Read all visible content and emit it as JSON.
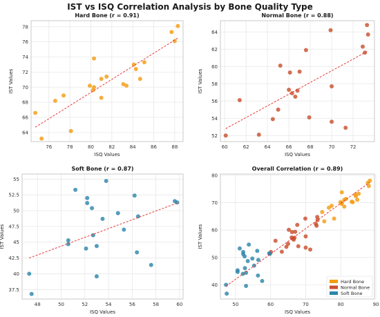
{
  "figure": {
    "title": "IST vs ISQ Correlation Analysis by Bone Quality Type"
  },
  "colors": {
    "hard": "#f39c12",
    "normal": "#c9502e",
    "soft": "#2e86ab",
    "fit": "#e53935",
    "grid": "#e8e8e8",
    "frame": "#bdbdbd"
  },
  "chart_data": [
    {
      "type": "scatter",
      "title": "Hard Bone (r = 0.91)",
      "xlabel": "ISQ Values",
      "ylabel": "IST Values",
      "xlim": [
        74.3,
        88.8
      ],
      "ylim": [
        62.8,
        78.8
      ],
      "xticks": [
        76,
        78,
        80,
        82,
        84,
        86,
        88
      ],
      "yticks": [
        64,
        66,
        68,
        70,
        72,
        74,
        76,
        78
      ],
      "series": [
        {
          "color_key": "hard",
          "points": [
            [
              74.7,
              66.6
            ],
            [
              75.3,
              63.2
            ],
            [
              76.6,
              68.2
            ],
            [
              77.4,
              68.9
            ],
            [
              78.1,
              64.2
            ],
            [
              79.9,
              70.2
            ],
            [
              80.2,
              69.6
            ],
            [
              80.3,
              70.0
            ],
            [
              80.3,
              73.8
            ],
            [
              81.0,
              68.6
            ],
            [
              81.0,
              71.1
            ],
            [
              81.5,
              71.4
            ],
            [
              83.1,
              70.4
            ],
            [
              83.4,
              70.2
            ],
            [
              84.1,
              73.0
            ],
            [
              84.3,
              72.4
            ],
            [
              84.7,
              71.1
            ],
            [
              85.1,
              73.3
            ],
            [
              87.7,
              77.3
            ],
            [
              88.0,
              76.1
            ],
            [
              88.3,
              78.1
            ]
          ]
        }
      ],
      "fit": [
        [
          74.7,
          64.7
        ],
        [
          88.3,
          76.5
        ]
      ]
    },
    {
      "type": "scatter",
      "title": "Normal Bone (r = 0.88)",
      "xlabel": "ISQ Values",
      "ylabel": "IST Values",
      "xlim": [
        59.6,
        74.0
      ],
      "ylim": [
        51.3,
        65.3
      ],
      "xticks": [
        60,
        62,
        64,
        66,
        68,
        70,
        72
      ],
      "yticks": [
        52,
        54,
        56,
        58,
        60,
        62,
        64
      ],
      "series": [
        {
          "color_key": "normal",
          "points": [
            [
              60.1,
              52.0
            ],
            [
              61.4,
              56.1
            ],
            [
              63.2,
              52.1
            ],
            [
              64.5,
              53.9
            ],
            [
              65.0,
              55.0
            ],
            [
              65.2,
              60.1
            ],
            [
              66.0,
              57.3
            ],
            [
              66.1,
              59.3
            ],
            [
              66.3,
              56.9
            ],
            [
              66.6,
              56.5
            ],
            [
              66.8,
              57.2
            ],
            [
              67.0,
              59.4
            ],
            [
              67.6,
              61.9
            ],
            [
              67.9,
              54.1
            ],
            [
              69.9,
              64.2
            ],
            [
              70.0,
              53.6
            ],
            [
              70.0,
              57.7
            ],
            [
              71.3,
              52.9
            ],
            [
              72.9,
              62.3
            ],
            [
              73.1,
              61.6
            ],
            [
              73.3,
              64.8
            ],
            [
              73.4,
              63.7
            ]
          ]
        }
      ],
      "fit": [
        [
          60.1,
          52.8
        ],
        [
          73.4,
          61.8
        ]
      ]
    },
    {
      "type": "scatter",
      "title": "Soft Bone (r = 0.87)",
      "xlabel": "ISQ Values",
      "ylabel": "IST Values",
      "xlim": [
        46.7,
        60.3
      ],
      "ylim": [
        36.0,
        55.8
      ],
      "xticks": [
        48,
        50,
        52,
        54,
        56,
        58,
        60
      ],
      "yticks": [
        37.5,
        40.0,
        42.5,
        45.0,
        47.5,
        50.0,
        52.5,
        55.0
      ],
      "series": [
        {
          "color_key": "soft",
          "points": [
            [
              47.3,
              40.0
            ],
            [
              47.5,
              36.8
            ],
            [
              50.6,
              45.3
            ],
            [
              50.6,
              44.7
            ],
            [
              51.2,
              53.3
            ],
            [
              52.1,
              44.0
            ],
            [
              52.2,
              52.0
            ],
            [
              52.2,
              51.2
            ],
            [
              52.6,
              50.4
            ],
            [
              52.7,
              46.1
            ],
            [
              53.0,
              39.6
            ],
            [
              53.0,
              44.4
            ],
            [
              53.5,
              48.7
            ],
            [
              53.8,
              54.7
            ],
            [
              54.8,
              49.6
            ],
            [
              55.3,
              47.0
            ],
            [
              56.2,
              52.4
            ],
            [
              56.4,
              43.4
            ],
            [
              56.5,
              49.1
            ],
            [
              57.6,
              41.4
            ],
            [
              59.6,
              51.5
            ],
            [
              59.8,
              51.3
            ]
          ]
        }
      ],
      "fit": [
        [
          47.3,
          42.5
        ],
        [
          59.8,
          51.2
        ]
      ]
    },
    {
      "type": "scatter",
      "title": "Overall Correlation (r = 0.89)",
      "xlabel": "ISQ Values",
      "ylabel": "IST Values",
      "xlim": [
        45.7,
        89.6
      ],
      "ylim": [
        34.8,
        80.5
      ],
      "xticks": [
        50,
        60,
        70,
        80,
        90
      ],
      "yticks": [
        40,
        50,
        60,
        70,
        80
      ],
      "legend": {
        "placement": "bottom-right",
        "entries": [
          "Hard Bone",
          "Normal Bone",
          "Soft Bone"
        ]
      },
      "series": [
        {
          "name": "Hard Bone",
          "color_key": "hard",
          "points": [
            [
              74.7,
              66.6
            ],
            [
              75.3,
              63.2
            ],
            [
              76.6,
              68.2
            ],
            [
              77.4,
              68.9
            ],
            [
              78.1,
              64.2
            ],
            [
              79.9,
              70.2
            ],
            [
              80.2,
              69.6
            ],
            [
              80.3,
              70.0
            ],
            [
              80.3,
              73.8
            ],
            [
              81.0,
              68.6
            ],
            [
              81.0,
              71.1
            ],
            [
              81.5,
              71.4
            ],
            [
              83.1,
              70.4
            ],
            [
              83.4,
              70.2
            ],
            [
              84.1,
              73.0
            ],
            [
              84.3,
              72.4
            ],
            [
              84.7,
              71.1
            ],
            [
              85.1,
              73.3
            ],
            [
              87.7,
              77.3
            ],
            [
              88.0,
              76.1
            ],
            [
              88.3,
              78.1
            ]
          ]
        },
        {
          "name": "Normal Bone",
          "color_key": "normal",
          "points": [
            [
              60.1,
              52.0
            ],
            [
              61.4,
              56.1
            ],
            [
              63.2,
              52.1
            ],
            [
              64.5,
              53.9
            ],
            [
              65.0,
              55.0
            ],
            [
              65.2,
              60.1
            ],
            [
              66.0,
              57.3
            ],
            [
              66.1,
              59.3
            ],
            [
              66.3,
              56.9
            ],
            [
              66.6,
              56.5
            ],
            [
              66.8,
              57.2
            ],
            [
              67.0,
              59.4
            ],
            [
              67.6,
              61.9
            ],
            [
              67.9,
              54.1
            ],
            [
              69.9,
              64.2
            ],
            [
              70.0,
              53.6
            ],
            [
              70.0,
              57.7
            ],
            [
              71.3,
              52.9
            ],
            [
              72.9,
              62.3
            ],
            [
              73.1,
              61.6
            ],
            [
              73.3,
              64.8
            ],
            [
              73.4,
              63.7
            ]
          ]
        },
        {
          "name": "Soft Bone",
          "color_key": "soft",
          "points": [
            [
              47.3,
              40.0
            ],
            [
              47.5,
              36.8
            ],
            [
              50.6,
              45.3
            ],
            [
              50.6,
              44.7
            ],
            [
              51.2,
              53.3
            ],
            [
              52.1,
              44.0
            ],
            [
              52.2,
              52.0
            ],
            [
              52.2,
              51.2
            ],
            [
              52.6,
              50.4
            ],
            [
              52.7,
              46.1
            ],
            [
              53.0,
              39.6
            ],
            [
              53.0,
              44.4
            ],
            [
              53.5,
              48.7
            ],
            [
              53.8,
              54.7
            ],
            [
              54.8,
              49.6
            ],
            [
              55.3,
              47.0
            ],
            [
              56.2,
              52.4
            ],
            [
              56.4,
              43.4
            ],
            [
              56.5,
              49.1
            ],
            [
              57.6,
              41.4
            ],
            [
              59.6,
              51.5
            ],
            [
              59.8,
              51.3
            ]
          ]
        }
      ],
      "fit": [
        [
          47.3,
          39.5
        ],
        [
          88.3,
          77.5
        ]
      ]
    }
  ]
}
